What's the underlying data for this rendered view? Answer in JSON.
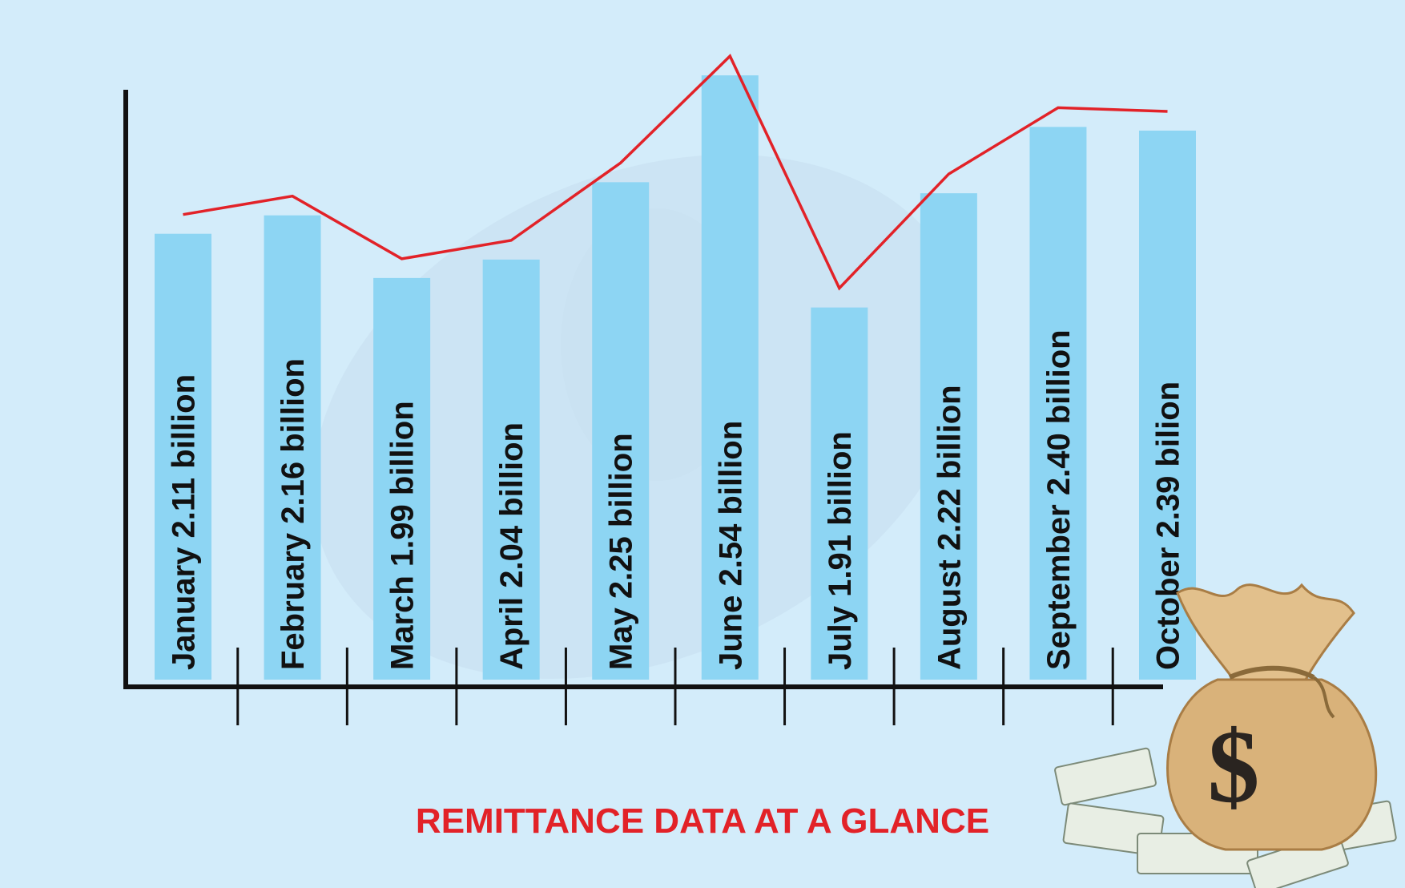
{
  "chart_data": {
    "type": "bar",
    "title": "REMITTANCE DATA AT A GLANCE",
    "categories": [
      "January",
      "February",
      "March",
      "April",
      "May",
      "June",
      "July",
      "August",
      "September",
      "October"
    ],
    "values": [
      2.11,
      2.16,
      1.99,
      2.04,
      2.25,
      2.54,
      1.91,
      2.22,
      2.4,
      2.39
    ],
    "bar_labels": [
      "January  2.11 billion",
      "February 2.16 billion",
      "March  1.99 billion",
      "April 2.04 billion",
      "May 2.25 billion",
      "June 2.54 billion",
      "July 1.91 billion",
      "August 2.22 billion",
      "September 2.40 billion",
      "October 2.39 bilion"
    ],
    "overlay": "line",
    "grid": false,
    "legend": "none",
    "colors": {
      "bar": "#8dd5f3",
      "line": "#e22228",
      "title": "#e22228",
      "axis": "#111111",
      "background": "#d3ecfa"
    }
  },
  "decorations": {
    "icon": "money-bag-icon"
  }
}
